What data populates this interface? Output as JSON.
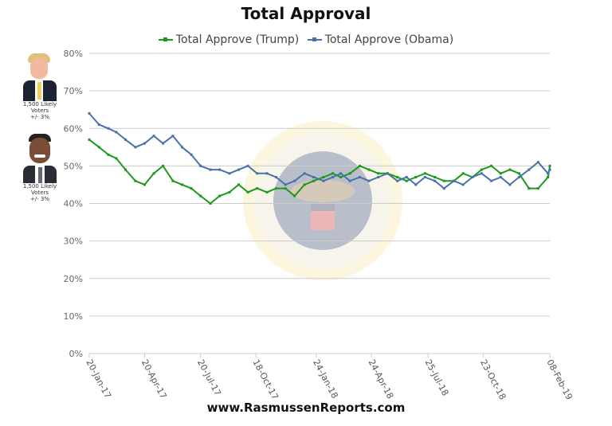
{
  "chart_data": {
    "type": "line",
    "title": "Total Approval",
    "xlabel": "",
    "ylabel": "",
    "ylim": [
      0,
      80
    ],
    "y_ticks": [
      "0%",
      "10%",
      "20%",
      "30%",
      "40%",
      "50%",
      "60%",
      "70%",
      "80%"
    ],
    "y_tick_values": [
      0,
      10,
      20,
      30,
      40,
      50,
      60,
      70,
      80
    ],
    "x_ticks": [
      "20-Jan-17",
      "20-Apr-17",
      "20-Jul-17",
      "18-Oct-17",
      "24-Jan-18",
      "24-Apr-18",
      "25-Jul-18",
      "23-Oct-18",
      "08-Feb-19"
    ],
    "x_tick_dates": [
      "2017-01-20",
      "2017-04-20",
      "2017-07-20",
      "2017-10-18",
      "2018-01-24",
      "2018-04-24",
      "2018-07-25",
      "2018-10-23",
      "2019-02-08"
    ],
    "xlim": [
      "2017-01-20",
      "2019-02-08"
    ],
    "grid": "horizontal",
    "legend_placement": "top",
    "x": [
      "2017-01-20",
      "2017-02-05",
      "2017-02-20",
      "2017-03-05",
      "2017-03-20",
      "2017-04-05",
      "2017-04-20",
      "2017-05-05",
      "2017-05-20",
      "2017-06-05",
      "2017-06-20",
      "2017-07-05",
      "2017-07-20",
      "2017-08-05",
      "2017-08-20",
      "2017-09-05",
      "2017-09-20",
      "2017-10-05",
      "2017-10-20",
      "2017-11-05",
      "2017-11-20",
      "2017-12-05",
      "2017-12-20",
      "2018-01-05",
      "2018-01-20",
      "2018-02-05",
      "2018-02-20",
      "2018-03-05",
      "2018-03-20",
      "2018-04-05",
      "2018-04-20",
      "2018-05-05",
      "2018-05-20",
      "2018-06-05",
      "2018-06-20",
      "2018-07-05",
      "2018-07-20",
      "2018-08-05",
      "2018-08-20",
      "2018-09-05",
      "2018-09-20",
      "2018-10-05",
      "2018-10-20",
      "2018-11-05",
      "2018-11-20",
      "2018-12-05",
      "2018-12-20",
      "2019-01-05",
      "2019-01-20",
      "2019-02-05",
      "2019-02-08"
    ],
    "series": [
      {
        "name": "Total Approve (Trump)",
        "color": "#1a9a1a",
        "values": [
          57,
          55,
          53,
          52,
          49,
          46,
          45,
          48,
          50,
          46,
          45,
          44,
          42,
          40,
          42,
          43,
          45,
          43,
          44,
          43,
          44,
          44,
          42,
          45,
          46,
          47,
          48,
          47,
          48,
          50,
          49,
          48,
          48,
          47,
          46,
          47,
          48,
          47,
          46,
          46,
          48,
          47,
          49,
          50,
          48,
          49,
          48,
          44,
          44,
          47,
          50
        ]
      },
      {
        "name": "Total Approve (Obama)",
        "color": "#4a72a8",
        "values": [
          64,
          61,
          60,
          59,
          57,
          55,
          56,
          58,
          56,
          58,
          55,
          53,
          50,
          49,
          49,
          48,
          49,
          50,
          48,
          48,
          47,
          45,
          46,
          48,
          47,
          46,
          47,
          48,
          46,
          47,
          46,
          47,
          48,
          46,
          47,
          45,
          47,
          46,
          44,
          46,
          45,
          47,
          48,
          46,
          47,
          45,
          47,
          49,
          51,
          48,
          49
        ]
      }
    ]
  },
  "sidebar": {
    "trump_caption": [
      "1,500 Likely",
      "Voters",
      "+/- 3%"
    ],
    "obama_caption": [
      "1,500 Likely",
      "Voters",
      "+/- 3%"
    ]
  },
  "watermark": "SEAL OF THE PRESIDENT OF THE UNITED STATES",
  "footer": "www.RasmussenReports.com"
}
